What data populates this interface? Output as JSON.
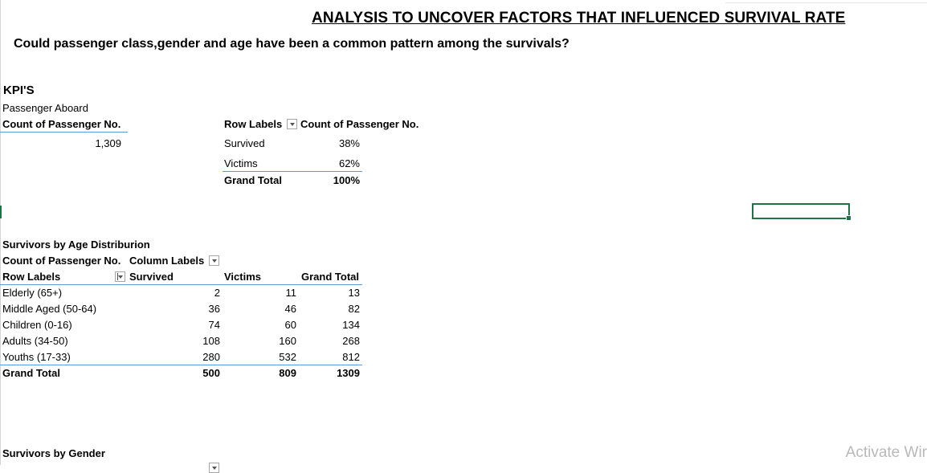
{
  "title": "ANALYSIS TO UNCOVER FACTORS THAT INFLUENCED SURVIVAL RATE",
  "question": "Could passenger class,gender and age have been a common pattern among the  survivals?",
  "kpi": {
    "heading": "KPI'S",
    "subheading": "Passenger Aboard",
    "header": "Count of Passenger No.",
    "value": "1,309"
  },
  "survival_pivot": {
    "row_labels": "Row Labels",
    "value_header": "Count of Passenger No.",
    "rows": [
      {
        "label": "Survived",
        "value": "38%"
      },
      {
        "label": "Victims",
        "value": "62%"
      }
    ],
    "total_label": "Grand Total",
    "total_value": "100%"
  },
  "age_pivot": {
    "caption": "Survivors by Age Distriburion",
    "value_field": "Count of Passenger No.",
    "column_labels": "Column Labels",
    "row_labels": "Row Labels",
    "columns": [
      "Survived",
      "Victims",
      "Grand Total"
    ],
    "rows": [
      {
        "label": "Elderly (65+)",
        "survived": "2",
        "victims": "11",
        "total": "13"
      },
      {
        "label": "Middle Aged (50-64)",
        "survived": "36",
        "victims": "46",
        "total": "82"
      },
      {
        "label": "Children (0-16)",
        "survived": "74",
        "victims": "60",
        "total": "134"
      },
      {
        "label": "Adults (34-50)",
        "survived": "108",
        "victims": "160",
        "total": "268"
      },
      {
        "label": "Youths (17-33)",
        "survived": "280",
        "victims": "532",
        "total": "812"
      }
    ],
    "total": {
      "label": "Grand Total",
      "survived": "500",
      "victims": "809",
      "total": "1309"
    }
  },
  "gender_caption": "Survivors by Gender",
  "watermark": "Activate Wir"
}
